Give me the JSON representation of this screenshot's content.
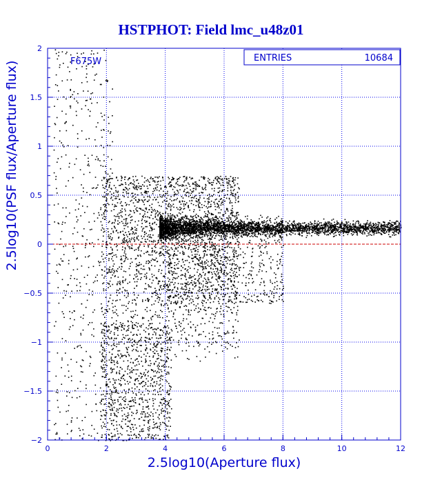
{
  "chart_data": {
    "type": "scatter",
    "title": "HSTPHOT: Field lmc_u48z01",
    "xlabel": "2.5log10(Aperture flux)",
    "ylabel": "2.5log10(PSF flux/Aperture flux)",
    "xlim": [
      0,
      12
    ],
    "ylim": [
      -2,
      2
    ],
    "x_ticks": [
      0,
      2,
      4,
      6,
      8,
      10,
      12
    ],
    "y_ticks": [
      -2,
      -1.5,
      -1,
      -0.5,
      0,
      0.5,
      1,
      1.5,
      2
    ],
    "x_tick_labels": [
      "0",
      "2",
      "4",
      "6",
      "8",
      "10",
      "12"
    ],
    "y_tick_labels": [
      "−2",
      "−1.5",
      "−1",
      "−0.5",
      "0",
      "0.5",
      "1",
      "1.5",
      "2"
    ],
    "grid": true,
    "annotation": "F675W",
    "stats_box": {
      "label": "ENTRIES",
      "value": "10684"
    },
    "reference_line": {
      "y": 0
    },
    "point_distribution": [
      {
        "region": "main sequence",
        "x_range": [
          3.8,
          12
        ],
        "y_center": 0.17,
        "y_spread": 0.06,
        "points": 3600
      },
      {
        "region": "faint spread",
        "x_range": [
          1.8,
          6.5
        ],
        "y_range": [
          -1.2,
          0.7
        ],
        "points": 2400
      },
      {
        "region": "lower plume",
        "x_range": [
          1.8,
          4.2
        ],
        "y_range": [
          -2,
          -0.8
        ],
        "points": 900
      },
      {
        "region": "left faint",
        "x_range": [
          0.2,
          2.2
        ],
        "y_range": [
          -2,
          2
        ],
        "points": 500
      },
      {
        "region": "bright scatter",
        "x_range": [
          4,
          8
        ],
        "y_range": [
          -0.6,
          0.3
        ],
        "points": 700
      }
    ],
    "colors": {
      "axis": "#0000cc",
      "grid": "#0000ee",
      "points": "#000000",
      "reference_line": "#cc0000",
      "title": "#0000cc"
    }
  }
}
